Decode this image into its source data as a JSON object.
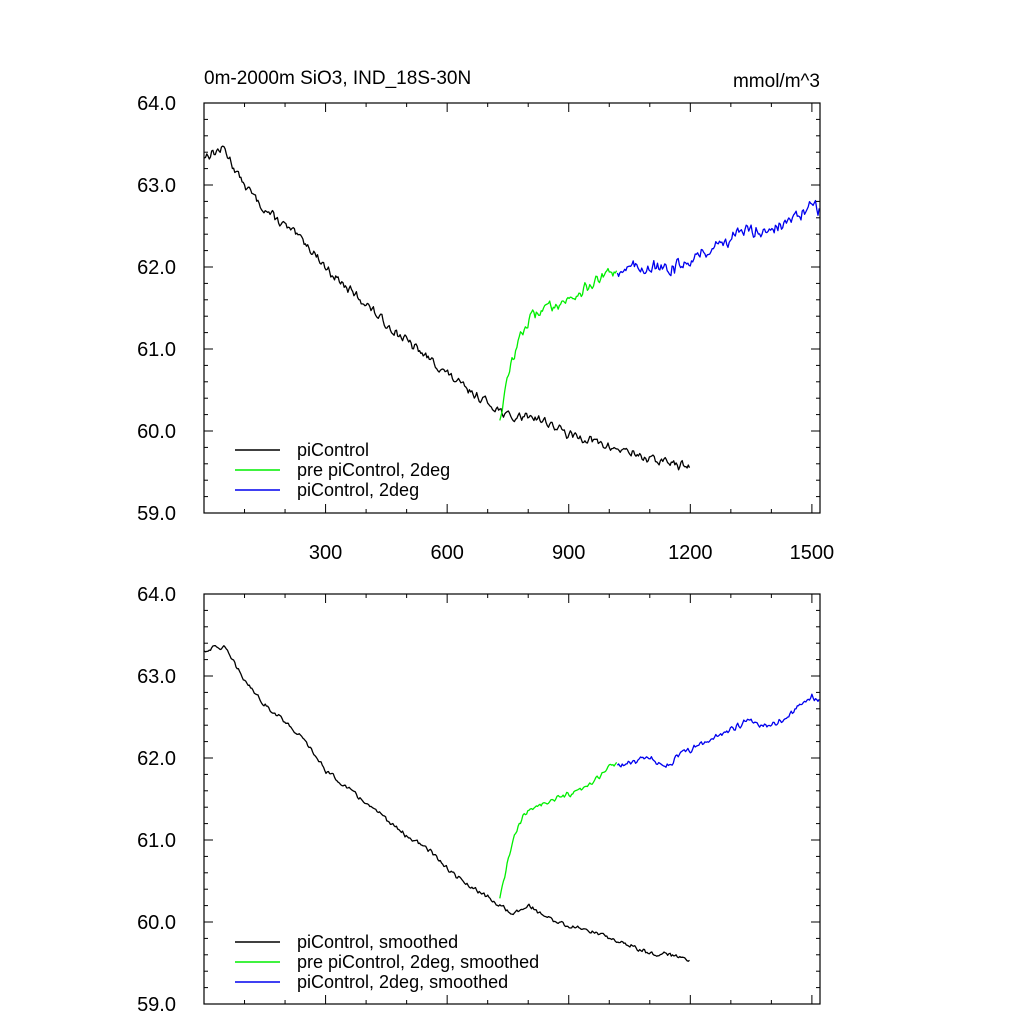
{
  "chart_data": [
    {
      "type": "line",
      "title": "0m-2000m SiO3, IND_18S-30N",
      "units": "mmol/m^3",
      "xlim": [
        0,
        1520
      ],
      "ylim": [
        59.0,
        64.0
      ],
      "x_ticks": [
        300,
        600,
        900,
        1200,
        1500
      ],
      "x_tick_labels": [
        "300",
        "600",
        "900",
        "1200",
        "1500"
      ],
      "y_ticks": [
        59.0,
        60.0,
        61.0,
        62.0,
        63.0,
        64.0
      ],
      "y_tick_labels": [
        "59.0",
        "60.0",
        "61.0",
        "62.0",
        "63.0",
        "64.0"
      ],
      "grid": false,
      "legend_position": "bottom-left",
      "series": [
        {
          "name": "piControl",
          "color": "#000000",
          "x": [
            1,
            25,
            50,
            75,
            100,
            150,
            200,
            250,
            300,
            350,
            400,
            450,
            500,
            550,
            600,
            650,
            700,
            730,
            760,
            800,
            850,
            900,
            950,
            1000,
            1050,
            1100,
            1150,
            1200
          ],
          "y": [
            63.35,
            63.4,
            63.45,
            63.2,
            63.0,
            62.7,
            62.5,
            62.3,
            62.0,
            61.75,
            61.55,
            61.3,
            61.1,
            60.9,
            60.7,
            60.5,
            60.35,
            60.25,
            60.15,
            60.2,
            60.1,
            59.95,
            59.9,
            59.8,
            59.75,
            59.65,
            59.62,
            59.55
          ],
          "noise": 0.07
        },
        {
          "name": "pre piControl, 2deg",
          "color": "#00ee00",
          "x": [
            730,
            740,
            750,
            760,
            775,
            790,
            810,
            840,
            870,
            900,
            930,
            960,
            990,
            1020
          ],
          "y": [
            60.15,
            60.4,
            60.65,
            60.85,
            61.1,
            61.25,
            61.4,
            61.5,
            61.55,
            61.6,
            61.7,
            61.8,
            61.9,
            61.95
          ],
          "noise": 0.08
        },
        {
          "name": "piControl, 2deg",
          "color": "#0000ee",
          "x": [
            1020,
            1060,
            1100,
            1140,
            1180,
            1220,
            1260,
            1300,
            1340,
            1380,
            1420,
            1460,
            1500,
            1520
          ],
          "y": [
            61.95,
            62.0,
            62.0,
            61.95,
            62.05,
            62.15,
            62.25,
            62.35,
            62.45,
            62.45,
            62.5,
            62.6,
            62.75,
            62.7
          ],
          "noise": 0.1
        }
      ]
    },
    {
      "type": "line",
      "title": "",
      "xlim": [
        0,
        1520
      ],
      "ylim": [
        59.0,
        64.0
      ],
      "x_ticks": [
        300,
        600,
        900,
        1200,
        1500
      ],
      "x_tick_labels": [],
      "y_ticks": [
        59.0,
        60.0,
        61.0,
        62.0,
        63.0,
        64.0
      ],
      "y_tick_labels": [
        "59.0",
        "60.0",
        "61.0",
        "62.0",
        "63.0",
        "64.0"
      ],
      "grid": false,
      "legend_position": "bottom-left",
      "series": [
        {
          "name": "piControl, smoothed",
          "color": "#000000",
          "x": [
            1,
            25,
            50,
            75,
            100,
            150,
            200,
            250,
            300,
            350,
            400,
            450,
            500,
            550,
            600,
            650,
            700,
            730,
            760,
            800,
            850,
            900,
            950,
            1000,
            1050,
            1100,
            1150,
            1200
          ],
          "y": [
            63.3,
            63.35,
            63.35,
            63.15,
            62.95,
            62.65,
            62.45,
            62.2,
            61.85,
            61.65,
            61.45,
            61.25,
            61.05,
            60.9,
            60.65,
            60.45,
            60.3,
            60.2,
            60.1,
            60.2,
            60.05,
            59.95,
            59.9,
            59.8,
            59.72,
            59.62,
            59.6,
            59.55
          ],
          "noise": 0.035
        },
        {
          "name": "pre piControl, 2deg, smoothed",
          "color": "#00ee00",
          "x": [
            730,
            740,
            750,
            760,
            775,
            790,
            810,
            840,
            870,
            900,
            930,
            960,
            990,
            1020
          ],
          "y": [
            60.28,
            60.5,
            60.75,
            60.95,
            61.15,
            61.3,
            61.4,
            61.45,
            61.5,
            61.55,
            61.6,
            61.7,
            61.85,
            61.95
          ],
          "noise": 0.04
        },
        {
          "name": "piControl, 2deg, smoothed",
          "color": "#0000ee",
          "x": [
            1020,
            1060,
            1100,
            1140,
            1180,
            1220,
            1260,
            1300,
            1340,
            1380,
            1420,
            1460,
            1500,
            1520
          ],
          "y": [
            61.9,
            61.95,
            62.0,
            61.9,
            62.05,
            62.15,
            62.25,
            62.35,
            62.45,
            62.4,
            62.45,
            62.6,
            62.75,
            62.7
          ],
          "noise": 0.05
        }
      ]
    }
  ]
}
